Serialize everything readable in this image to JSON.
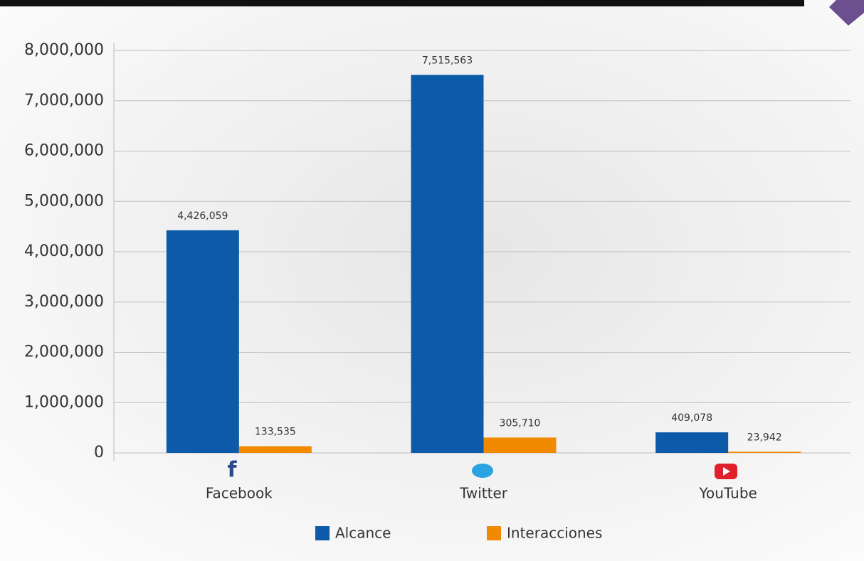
{
  "chart_data": {
    "type": "bar",
    "categories": [
      "Facebook",
      "Twitter",
      "YouTube"
    ],
    "series": [
      {
        "name": "Alcance",
        "color": "#0d5ba8",
        "values": [
          4426059,
          7515563,
          409078
        ],
        "value_labels": [
          "4,426,059",
          "7,515,563",
          "409,078"
        ]
      },
      {
        "name": "Interacciones",
        "color": "#f18a00",
        "values": [
          133535,
          305710,
          23942
        ],
        "value_labels": [
          "133,535",
          "305,710",
          "23,942"
        ]
      }
    ],
    "ylim": [
      0,
      8000000
    ],
    "yticks": [
      0,
      {
        "value": 1000000,
        "label": "1,000,000"
      },
      {
        "value": 2000000,
        "label": "2,000,000"
      },
      {
        "value": 3000000,
        "label": "3,000,000"
      },
      {
        "value": 4000000,
        "label": "4,000,000"
      },
      {
        "value": 5000000,
        "label": "5,000,000"
      },
      {
        "value": 6000000,
        "label": "6,000,000"
      },
      {
        "value": 7000000,
        "label": "7,000,000"
      },
      {
        "value": 8000000,
        "label": "8,000,000"
      }
    ],
    "grid": true
  }
}
